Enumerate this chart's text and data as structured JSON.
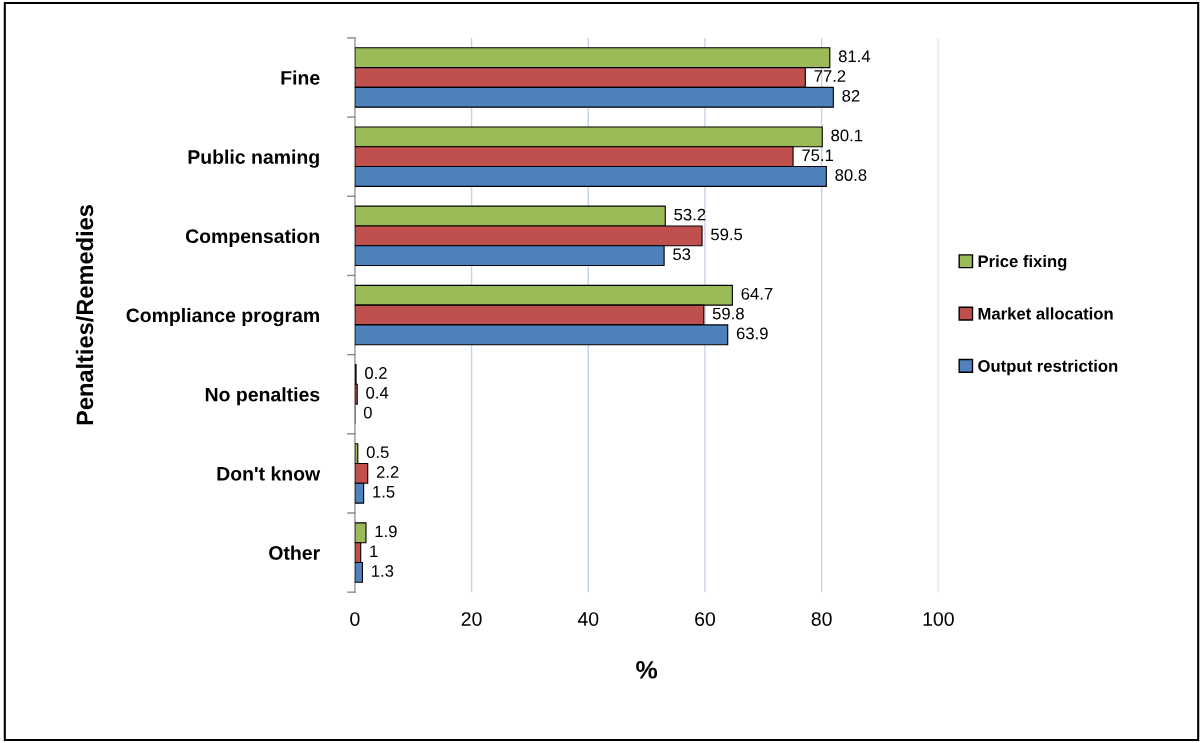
{
  "chart_data": {
    "type": "bar",
    "orientation": "horizontal",
    "xlabel": "%",
    "ylabel": "Penalties/Remedies",
    "categories": [
      "Fine",
      "Public naming",
      "Compensation",
      "Compliance program",
      "No penalties",
      "Don't know",
      "Other"
    ],
    "series": [
      {
        "name": "Price fixing",
        "color": "#9bbb59",
        "values": [
          81.4,
          80.1,
          53.2,
          64.7,
          0.2,
          0.5,
          1.9
        ]
      },
      {
        "name": "Market allocation",
        "color": "#c0504d",
        "values": [
          77.2,
          75.1,
          59.5,
          59.8,
          0.4,
          2.2,
          1
        ]
      },
      {
        "name": "Output restriction",
        "color": "#4f81bd",
        "values": [
          82,
          80.8,
          53,
          63.9,
          0,
          1.5,
          1.3
        ]
      }
    ],
    "xlim": [
      0,
      100
    ],
    "xticks": [
      0,
      20,
      40,
      60,
      80,
      100
    ],
    "grid": "x",
    "legend": "right",
    "data_labels": true
  }
}
